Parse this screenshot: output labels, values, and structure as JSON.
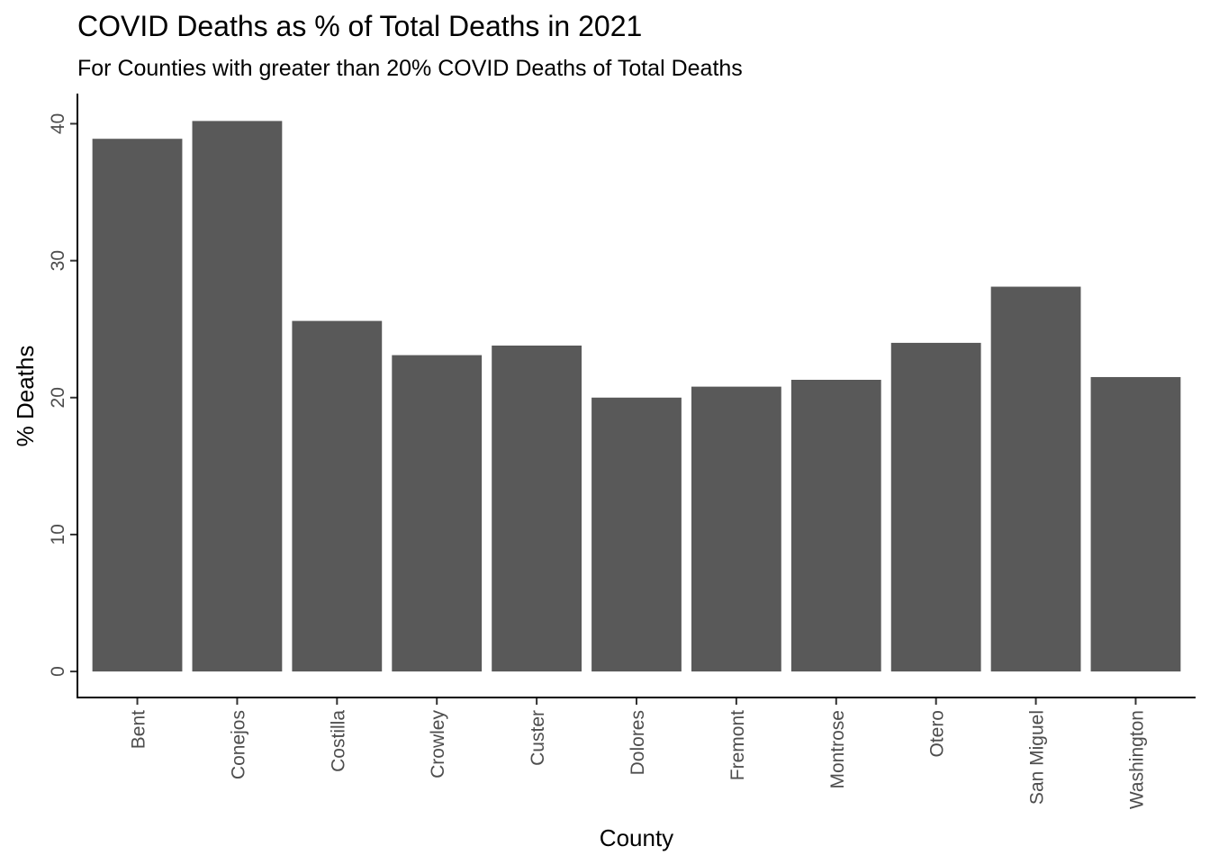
{
  "chart_data": {
    "type": "bar",
    "title": "COVID Deaths as % of Total Deaths in 2021",
    "subtitle": "For Counties with greater than 20% COVID Deaths of Total Deaths",
    "xlabel": "County",
    "ylabel": "% Deaths",
    "categories": [
      "Bent",
      "Conejos",
      "Costilla",
      "Crowley",
      "Custer",
      "Dolores",
      "Fremont",
      "Montrose",
      "Otero",
      "San Miguel",
      "Washington"
    ],
    "values": [
      38.9,
      40.2,
      25.6,
      23.1,
      23.8,
      20.0,
      20.8,
      21.3,
      24.0,
      28.1,
      21.5
    ],
    "yticks": [
      0,
      10,
      20,
      30,
      40
    ],
    "ylim": [
      -1.9,
      42.2
    ],
    "grid": false,
    "bar_color": "#595959",
    "axis_color": "#000000",
    "tick_label_color": "#4d4d4d"
  }
}
